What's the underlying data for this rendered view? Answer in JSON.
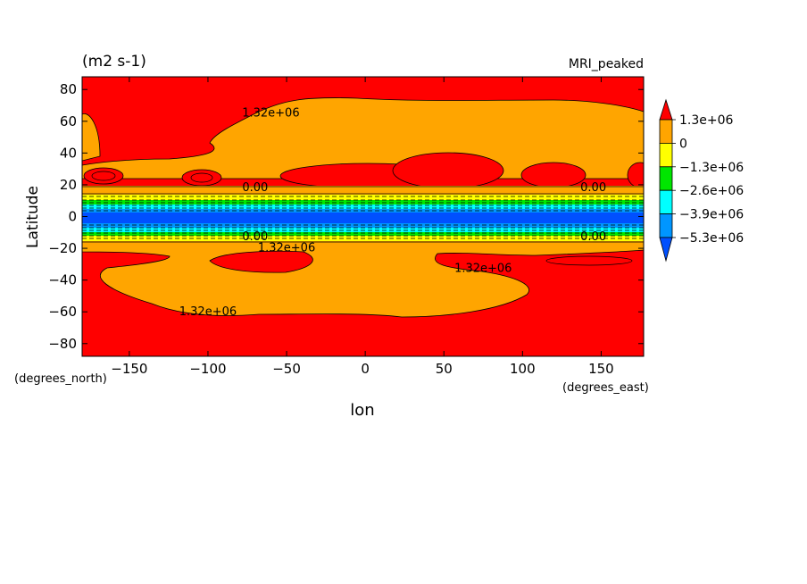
{
  "header": {
    "units": "(m2 s-1)",
    "dataset": "MRI_peaked"
  },
  "chart_data": {
    "type": "heatmap",
    "title": "",
    "xlabel": "lon",
    "ylabel": "Latitude",
    "x_units": "(degrees_east)",
    "y_units": "(degrees_north)",
    "xlim": [
      -180,
      177
    ],
    "ylim": [
      -88,
      88
    ],
    "x_ticks": [
      -150,
      -100,
      -50,
      0,
      50,
      100,
      150
    ],
    "y_ticks": [
      80,
      60,
      40,
      20,
      0,
      -20,
      -40,
      -60,
      -80
    ],
    "colorbar": {
      "labels": [
        "1.3e+06",
        "0",
        "−1.3e+06",
        "−2.6e+06",
        "−3.9e+06",
        "−5.3e+06"
      ],
      "colors": [
        "#ff0000",
        "#ffa500",
        "#ffff00",
        "#00e600",
        "#00ffff",
        "#0096ff",
        "#0050ff"
      ],
      "extend": "both"
    },
    "contour_labels": [
      {
        "text": "1.32e+06",
        "lon": -60,
        "lat": 63
      },
      {
        "text": "0.00",
        "lon": -70,
        "lat": 16
      },
      {
        "text": "0.00",
        "lon": 145,
        "lat": 16
      },
      {
        "text": "0.00",
        "lon": -70,
        "lat": -15
      },
      {
        "text": "0.00",
        "lon": 145,
        "lat": -15
      },
      {
        "text": "1.32e+06",
        "lon": -50,
        "lat": -22
      },
      {
        "text": "1.32e+06",
        "lon": 75,
        "lat": -35
      },
      {
        "text": "1.32e+06",
        "lon": -100,
        "lat": -62
      }
    ]
  }
}
